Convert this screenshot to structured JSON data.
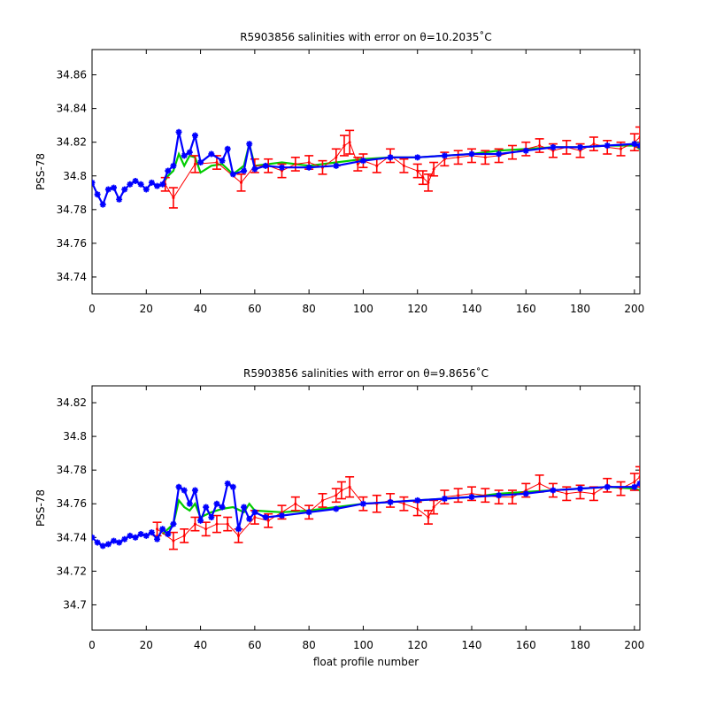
{
  "chart_data": [
    {
      "type": "line",
      "title": "R5903856 salinities with error on θ=10.2035˚C",
      "xlabel": "",
      "ylabel": "PSS-78",
      "xlim": [
        0,
        202
      ],
      "ylim": [
        34.73,
        34.875
      ],
      "xticks": [
        0,
        20,
        40,
        60,
        80,
        100,
        120,
        140,
        160,
        180,
        200
      ],
      "yticks": [
        34.74,
        34.76,
        34.78,
        34.8,
        34.82,
        34.84,
        34.86
      ],
      "ytick_labels": [
        "34.74",
        "34.76",
        "34.78",
        "34.8",
        "34.82",
        "34.84",
        "34.86"
      ],
      "grid": false,
      "series": [
        {
          "color": "#0000ff",
          "marker": "star",
          "x": [
            0,
            2,
            4,
            6,
            8,
            10,
            12,
            14,
            16,
            18,
            20,
            22,
            24,
            26,
            28,
            30,
            32,
            34,
            36,
            38,
            40,
            44,
            48,
            50,
            52,
            56,
            58,
            60,
            64,
            70,
            80,
            90,
            100,
            110,
            120,
            130,
            140,
            150,
            160,
            170,
            180,
            190,
            200,
            202
          ],
          "y": [
            34.796,
            34.789,
            34.783,
            34.792,
            34.793,
            34.786,
            34.792,
            34.795,
            34.797,
            34.795,
            34.792,
            34.796,
            34.794,
            34.795,
            34.803,
            34.806,
            34.826,
            34.812,
            34.814,
            34.824,
            34.808,
            34.813,
            34.809,
            34.816,
            34.801,
            34.803,
            34.819,
            34.804,
            34.806,
            34.805,
            34.805,
            34.806,
            34.809,
            34.811,
            34.811,
            34.812,
            34.813,
            34.813,
            34.815,
            34.817,
            34.817,
            34.818,
            34.819,
            34.818
          ]
        },
        {
          "color": "#00cc00",
          "marker": "none",
          "x": [
            26,
            28,
            30,
            32,
            34,
            36,
            38,
            40,
            44,
            48,
            52,
            56,
            58,
            60,
            70,
            80,
            90,
            100,
            110,
            120,
            130,
            140,
            150,
            160,
            170,
            180,
            190,
            200,
            202
          ],
          "y": [
            34.795,
            34.8,
            34.803,
            34.813,
            34.806,
            34.812,
            34.811,
            34.802,
            34.806,
            34.807,
            34.801,
            34.806,
            34.819,
            34.806,
            34.808,
            34.806,
            34.808,
            34.81,
            34.811,
            34.811,
            34.812,
            34.813,
            34.815,
            34.816,
            34.817,
            34.817,
            34.818,
            34.818,
            34.816
          ]
        },
        {
          "color": "#ff0000",
          "marker": "errorbar",
          "x": [
            27,
            30,
            38,
            46,
            55,
            60,
            65,
            70,
            75,
            80,
            85,
            90,
            93,
            95,
            98,
            100,
            105,
            110,
            115,
            120,
            122,
            124,
            126,
            130,
            135,
            140,
            145,
            150,
            155,
            160,
            165,
            170,
            175,
            180,
            185,
            190,
            195,
            200,
            202
          ],
          "y": [
            34.795,
            34.787,
            34.807,
            34.808,
            34.796,
            34.806,
            34.806,
            34.803,
            34.807,
            34.808,
            34.805,
            34.811,
            34.818,
            34.82,
            34.807,
            34.809,
            34.806,
            34.812,
            34.806,
            34.803,
            34.799,
            34.796,
            34.804,
            34.81,
            34.811,
            34.812,
            34.811,
            34.812,
            34.814,
            34.816,
            34.818,
            34.815,
            34.817,
            34.815,
            34.819,
            34.817,
            34.816,
            34.82,
            34.823
          ],
          "err": [
            0.004,
            0.006,
            0.005,
            0.004,
            0.005,
            0.004,
            0.004,
            0.004,
            0.004,
            0.004,
            0.004,
            0.005,
            0.006,
            0.007,
            0.004,
            0.004,
            0.004,
            0.004,
            0.004,
            0.004,
            0.004,
            0.005,
            0.004,
            0.004,
            0.004,
            0.004,
            0.004,
            0.004,
            0.004,
            0.004,
            0.004,
            0.004,
            0.004,
            0.004,
            0.004,
            0.004,
            0.004,
            0.005,
            0.006
          ]
        }
      ]
    },
    {
      "type": "line",
      "title": "R5903856 salinities with error on θ=9.8656˚C",
      "xlabel": "float profile number",
      "ylabel": "PSS-78",
      "xlim": [
        0,
        202
      ],
      "ylim": [
        34.685,
        34.83
      ],
      "xticks": [
        0,
        20,
        40,
        60,
        80,
        100,
        120,
        140,
        160,
        180,
        200
      ],
      "yticks": [
        34.7,
        34.72,
        34.74,
        34.76,
        34.78,
        34.8,
        34.82
      ],
      "ytick_labels": [
        "34.7",
        "34.72",
        "34.74",
        "34.76",
        "34.78",
        "34.8",
        "34.82"
      ],
      "grid": false,
      "series": [
        {
          "color": "#0000ff",
          "marker": "star",
          "x": [
            0,
            2,
            4,
            6,
            8,
            10,
            12,
            14,
            16,
            18,
            20,
            22,
            24,
            26,
            28,
            30,
            32,
            34,
            36,
            38,
            40,
            42,
            44,
            46,
            48,
            50,
            52,
            54,
            56,
            58,
            60,
            64,
            70,
            80,
            90,
            100,
            110,
            120,
            130,
            140,
            150,
            160,
            170,
            180,
            190,
            200,
            202
          ],
          "y": [
            34.74,
            34.737,
            34.735,
            34.736,
            34.738,
            34.737,
            34.739,
            34.741,
            34.74,
            34.742,
            34.741,
            34.743,
            34.739,
            34.745,
            34.742,
            34.748,
            34.77,
            34.768,
            34.76,
            34.768,
            34.75,
            34.758,
            34.752,
            34.76,
            34.758,
            34.772,
            34.77,
            34.745,
            34.758,
            34.751,
            34.755,
            34.752,
            34.753,
            34.755,
            34.757,
            34.76,
            34.761,
            34.762,
            34.763,
            34.764,
            34.765,
            34.766,
            34.768,
            34.769,
            34.77,
            34.77,
            34.772
          ]
        },
        {
          "color": "#00cc00",
          "marker": "none",
          "x": [
            26,
            28,
            30,
            32,
            34,
            36,
            38,
            40,
            44,
            48,
            52,
            56,
            58,
            60,
            70,
            80,
            90,
            100,
            110,
            120,
            130,
            140,
            150,
            160,
            170,
            180,
            190,
            200,
            202
          ],
          "y": [
            34.742,
            34.745,
            34.748,
            34.762,
            34.758,
            34.756,
            34.76,
            34.752,
            34.755,
            34.757,
            34.758,
            34.755,
            34.76,
            34.756,
            34.755,
            34.756,
            34.758,
            34.76,
            34.761,
            34.762,
            34.763,
            34.764,
            34.766,
            34.767,
            34.768,
            34.769,
            34.77,
            34.769,
            34.768
          ]
        },
        {
          "color": "#ff0000",
          "marker": "errorbar",
          "x": [
            24,
            30,
            34,
            38,
            42,
            46,
            50,
            54,
            60,
            65,
            70,
            75,
            80,
            85,
            90,
            92,
            95,
            100,
            105,
            110,
            115,
            120,
            124,
            126,
            130,
            135,
            140,
            145,
            150,
            155,
            160,
            165,
            170,
            175,
            180,
            185,
            190,
            195,
            200,
            202
          ],
          "y": [
            34.745,
            34.738,
            34.741,
            34.748,
            34.745,
            34.748,
            34.748,
            34.741,
            34.752,
            34.75,
            34.755,
            34.76,
            34.755,
            34.762,
            34.765,
            34.768,
            34.77,
            34.76,
            34.76,
            34.762,
            34.76,
            34.757,
            34.752,
            34.758,
            34.764,
            34.765,
            34.766,
            34.765,
            34.764,
            34.764,
            34.768,
            34.772,
            34.768,
            34.766,
            34.767,
            34.766,
            34.771,
            34.769,
            34.773,
            34.776
          ],
          "err": [
            0.004,
            0.005,
            0.004,
            0.004,
            0.004,
            0.005,
            0.004,
            0.004,
            0.004,
            0.004,
            0.004,
            0.004,
            0.004,
            0.004,
            0.004,
            0.005,
            0.006,
            0.004,
            0.005,
            0.004,
            0.004,
            0.004,
            0.004,
            0.004,
            0.004,
            0.004,
            0.004,
            0.004,
            0.004,
            0.004,
            0.004,
            0.005,
            0.004,
            0.004,
            0.004,
            0.004,
            0.004,
            0.004,
            0.005,
            0.006
          ]
        }
      ]
    }
  ]
}
